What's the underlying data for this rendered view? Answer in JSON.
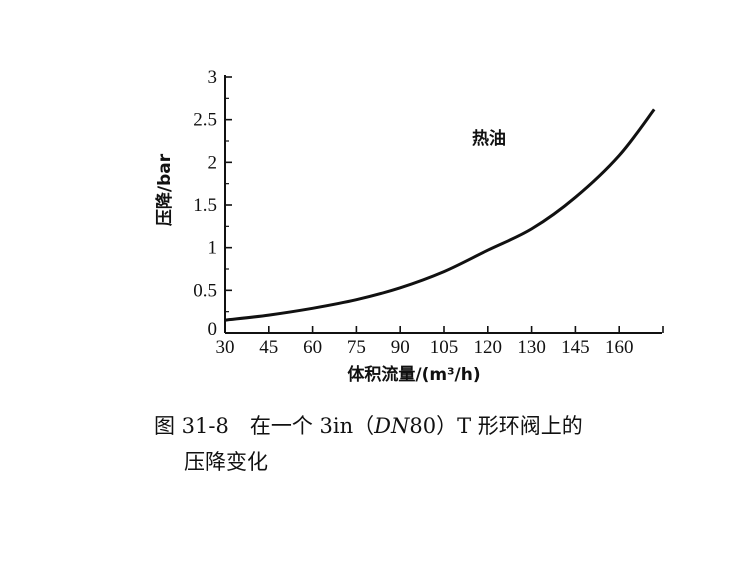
{
  "chart_data": {
    "type": "line",
    "xlabel": "体积流量/(m³/h)",
    "ylabel": "压降/bar",
    "categories": [
      "30",
      "45",
      "60",
      "75",
      "90",
      "105",
      "120",
      "130",
      "145",
      "160"
    ],
    "yticks": [
      "0",
      "0.5",
      "1",
      "1.5",
      "2",
      "2.5",
      "3"
    ],
    "ylim": [
      0,
      3
    ],
    "series": [
      {
        "name": "热油",
        "x": [
          30,
          45,
          60,
          75,
          90,
          105,
          120,
          130,
          145,
          160,
          172
        ],
        "values": [
          0.15,
          0.21,
          0.29,
          0.39,
          0.53,
          0.72,
          0.97,
          1.22,
          1.59,
          2.08,
          2.62
        ]
      }
    ],
    "grid": false,
    "legend": "in-plot label near top-middle"
  },
  "caption": {
    "line1_prefix": "图 31-8　在一个 3in（",
    "line1_italic": "DN",
    "line1_suffix": "80）T 形环阀上的",
    "line2": "压降变化"
  }
}
